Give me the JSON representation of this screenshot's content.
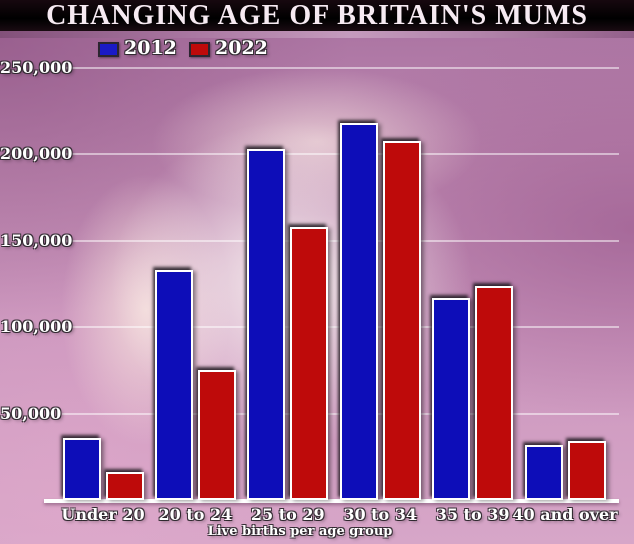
{
  "title": "CHANGING AGE OF BRITAIN'S MUMS",
  "colors": {
    "title_bg": "#000000",
    "title_text": "#F6EAF2",
    "axis_line": "#FFFFFF",
    "gridline": "rgba(255,255,255,0.5)",
    "background_pink": "#C795BD",
    "bar_2012_blue": "#0D0DB8",
    "bar_2022_red": "#BE0A0A"
  },
  "legend": {
    "items": [
      {
        "label": "2012",
        "color": "#1A1AC6"
      },
      {
        "label": "2022",
        "color": "#BE0A0A"
      }
    ]
  },
  "chart_data": {
    "type": "bar",
    "title": "CHANGING AGE OF BRITAIN'S MUMS",
    "xlabel": "Live births per age group",
    "ylabel": "",
    "categories": [
      "Under 20",
      "20 to 24",
      "25 to 29",
      "30 to 34",
      "35 to 39",
      "40 and over"
    ],
    "series": [
      {
        "name": "2012",
        "color": "#0D0DB8",
        "values": [
          36000,
          133000,
          203000,
          218000,
          117000,
          32000
        ]
      },
      {
        "name": "2022",
        "color": "#BE0A0A",
        "values": [
          16000,
          75000,
          158000,
          208000,
          124000,
          34000
        ]
      }
    ],
    "ylim": [
      0,
      250000
    ],
    "yticks": [
      50000,
      100000,
      150000,
      200000,
      250000
    ],
    "ytick_labels": [
      "50,000",
      "100,000",
      "150,000",
      "200,000",
      "250,000"
    ],
    "grid": true,
    "legend_position": "top"
  }
}
